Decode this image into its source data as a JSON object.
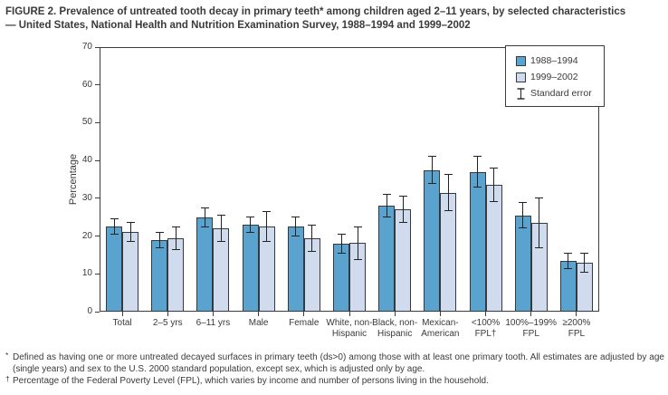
{
  "title": {
    "lines": [
      "FIGURE 2. Prevalence of untreated tooth decay in primary teeth* among children aged 2–11 years, by selected characteristics",
      "— United States, National Health and Nutrition Examination Survey, 1988–1994 and 1999–2002"
    ]
  },
  "legend": {
    "series1_label": "1988–1994",
    "series2_label": "1999–2002",
    "stderr_label": "Standard error"
  },
  "colors": {
    "series1": "#5AA3CF",
    "series2": "#D0DCEE",
    "bar_border": "#343A40",
    "axis": "#3C3C3C",
    "error_bar": "#222222"
  },
  "chart_data": {
    "type": "bar",
    "title": "Prevalence of untreated tooth decay in primary teeth among children aged 2–11 years",
    "ylabel": "Percentage",
    "xlabel": "",
    "ylim": [
      0,
      70
    ],
    "yticks": [
      0,
      10,
      20,
      30,
      40,
      50,
      60,
      70
    ],
    "grid": false,
    "legend_position": "top-right",
    "categories": [
      [
        "Total"
      ],
      [
        "2–5 yrs"
      ],
      [
        "6–11 yrs"
      ],
      [
        "Male"
      ],
      [
        "Female"
      ],
      [
        "White, non-",
        "Hispanic"
      ],
      [
        "Black, non-",
        "Hispanic"
      ],
      [
        "Mexican-",
        "American"
      ],
      [
        "<100%",
        "FPL†"
      ],
      [
        "100%–199%",
        "FPL"
      ],
      [
        "≥200%",
        "FPL"
      ]
    ],
    "series": [
      {
        "name": "1988–1994",
        "values": [
          22.5,
          19.0,
          25.0,
          23.0,
          22.5,
          18.0,
          28.0,
          37.5,
          37.0,
          25.5,
          13.5
        ],
        "stderr": [
          2.0,
          2.0,
          2.5,
          2.0,
          2.5,
          2.5,
          3.0,
          3.5,
          4.0,
          3.3,
          2.0
        ]
      },
      {
        "name": "1999–2002",
        "values": [
          21.0,
          19.5,
          22.0,
          22.5,
          19.5,
          18.2,
          27.0,
          31.5,
          33.5,
          23.5,
          13.0
        ],
        "stderr": [
          2.5,
          3.0,
          3.5,
          4.0,
          3.5,
          4.3,
          3.5,
          4.7,
          4.4,
          6.5,
          2.5
        ]
      }
    ]
  },
  "footnotes": [
    {
      "marker": "*",
      "text": "Defined as having one or more untreated decayed surfaces in primary teeth (ds>0) among those with at least one primary tooth. All estimates are adjusted by age (single years) and sex to the U.S. 2000 standard population, except sex, which is adjusted only by age."
    },
    {
      "marker": "†",
      "text": "Percentage of the Federal Poverty Level (FPL), which varies by income and number of persons living in the household."
    }
  ]
}
